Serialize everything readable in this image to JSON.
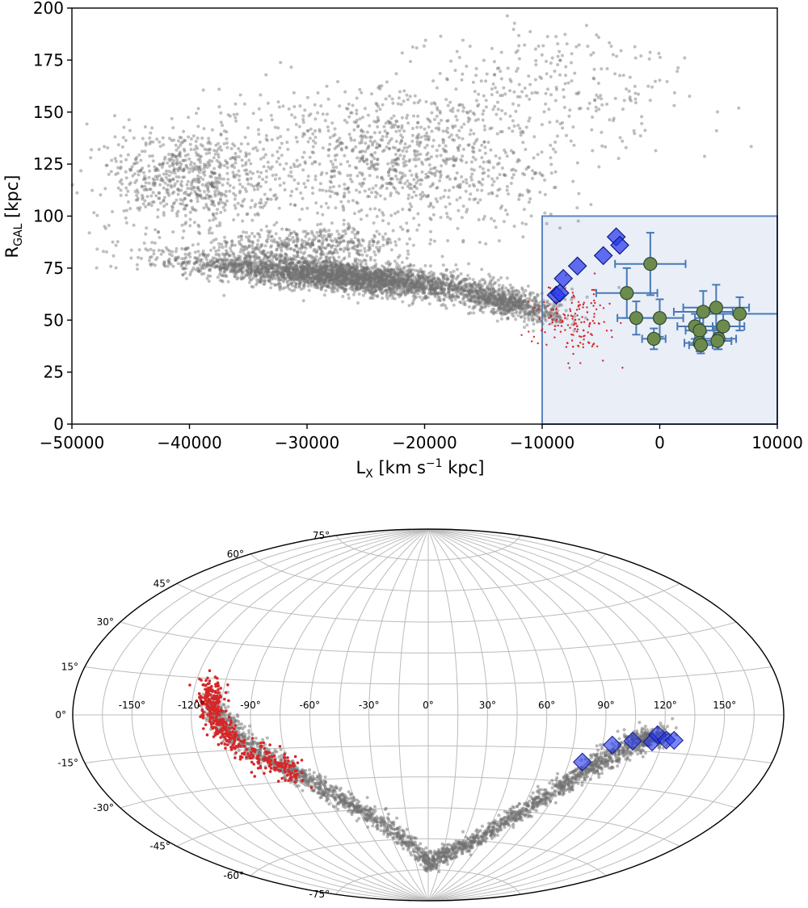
{
  "chart_data": [
    {
      "type": "scatter",
      "title": "",
      "xlabel": "L_X [km s^-1 kpc]",
      "xlabel_main": "L",
      "xlabel_sub": "X",
      "xlabel_units": " [km s",
      "xlabel_sup": "−1",
      "xlabel_tail": " kpc]",
      "ylabel": "R_GAL [kpc]",
      "ylabel_main": "R",
      "ylabel_sub": "GAL",
      "ylabel_units": " [kpc]",
      "xlim": [
        -50000,
        10000
      ],
      "ylim": [
        0,
        200
      ],
      "xticks": [
        -50000,
        -40000,
        -30000,
        -20000,
        -10000,
        0,
        10000
      ],
      "xtick_labels": [
        "−50000",
        "−40000",
        "−30000",
        "−20000",
        "−10000",
        "0",
        "10000"
      ],
      "yticks": [
        0,
        25,
        50,
        75,
        100,
        125,
        150,
        175,
        200
      ],
      "ytick_labels": [
        "0",
        "25",
        "50",
        "75",
        "100",
        "125",
        "150",
        "175",
        "200"
      ],
      "highlight_box": {
        "x": [
          -10000,
          10000
        ],
        "y": [
          0,
          100
        ]
      },
      "colors": {
        "sim": "#707070",
        "selected": "#d62728",
        "diamond": "#2233ee",
        "circle": "#6e8b4e",
        "errbar": "#4a78b5",
        "box_edge": "#5b84c0",
        "box_fill": "#e9eef7"
      },
      "series": [
        {
          "name": "simulated stream particles",
          "marker": "dot",
          "clouds": [
            {
              "cx": -27000,
              "cy": 71,
              "sx": 6500,
              "sy": 3.5,
              "n": 3200,
              "slope": -0.00055
            },
            {
              "cx": -13000,
              "cy": 58,
              "sx": 2200,
              "sy": 3,
              "n": 700,
              "slope": -0.0012
            },
            {
              "cx": -30000,
              "cy": 86,
              "sx": 4500,
              "sy": 4,
              "n": 450,
              "slope": 0
            },
            {
              "cx": -40000,
              "cy": 118,
              "sx": 3500,
              "sy": 13,
              "n": 700,
              "slope": 0
            },
            {
              "cx": -22000,
              "cy": 128,
              "sx": 7000,
              "sy": 18,
              "n": 1100,
              "slope": 0
            },
            {
              "cx": -8000,
              "cy": 165,
              "sx": 6000,
              "sy": 15,
              "n": 220,
              "slope": 0
            }
          ]
        },
        {
          "name": "selected particles",
          "marker": "small-dot",
          "clouds": [
            {
              "cx": -7500,
              "cy": 50,
              "sx": 1600,
              "sy": 8,
              "n": 160,
              "slope": 0
            }
          ]
        },
        {
          "name": "diamond stars",
          "marker": "diamond",
          "points": [
            {
              "x": -8800,
              "y": 62
            },
            {
              "x": -8500,
              "y": 63
            },
            {
              "x": -8200,
              "y": 70
            },
            {
              "x": -7000,
              "y": 76
            },
            {
              "x": -4800,
              "y": 81
            },
            {
              "x": -3700,
              "y": 90
            },
            {
              "x": -3400,
              "y": 86
            }
          ]
        },
        {
          "name": "circle stars with errors",
          "marker": "circle",
          "points": [
            {
              "x": -800,
              "y": 77,
              "xerr": 3000,
              "yerr": 15
            },
            {
              "x": -2800,
              "y": 63,
              "xerr": 2600,
              "yerr": 12
            },
            {
              "x": -2000,
              "y": 51,
              "xerr": 1600,
              "yerr": 8
            },
            {
              "x": 0,
              "y": 51,
              "xerr": 2000,
              "yerr": 9
            },
            {
              "x": -500,
              "y": 41,
              "xerr": 1000,
              "yerr": 5
            },
            {
              "x": 3700,
              "y": 54,
              "xerr": 2500,
              "yerr": 10
            },
            {
              "x": 4800,
              "y": 56,
              "xerr": 2800,
              "yerr": 11
            },
            {
              "x": 6800,
              "y": 53,
              "xerr": 3200,
              "yerr": 8
            },
            {
              "x": 3000,
              "y": 47,
              "xerr": 1500,
              "yerr": 6
            },
            {
              "x": 3400,
              "y": 45,
              "xerr": 1200,
              "yerr": 6
            },
            {
              "x": 5400,
              "y": 47,
              "xerr": 1800,
              "yerr": 6
            },
            {
              "x": 5000,
              "y": 41,
              "xerr": 1500,
              "yerr": 5
            },
            {
              "x": 3400,
              "y": 39,
              "xerr": 1300,
              "yerr": 4
            },
            {
              "x": 3500,
              "y": 38,
              "xerr": 1000,
              "yerr": 4
            },
            {
              "x": 4900,
              "y": 40,
              "xerr": 1200,
              "yerr": 4
            }
          ]
        }
      ]
    },
    {
      "type": "scatter",
      "projection": "aitoff",
      "title": "",
      "lon_labels": [
        "-150°",
        "-120°",
        "-90°",
        "-60°",
        "-30°",
        "0°",
        "30°",
        "60°",
        "90°",
        "120°",
        "150°"
      ],
      "lon_values": [
        -150,
        -120,
        -90,
        -60,
        -30,
        0,
        30,
        60,
        90,
        120,
        150
      ],
      "lat_labels": [
        "-75°",
        "-60°",
        "-45°",
        "-30°",
        "-15°",
        "0°",
        "15°",
        "30°",
        "45°",
        "60°",
        "75°"
      ],
      "lat_values": [
        -75,
        -60,
        -45,
        -30,
        -15,
        0,
        15,
        30,
        45,
        60,
        75
      ],
      "series": [
        {
          "name": "simulated stream particles",
          "marker": "dot",
          "track": [
            {
              "lon": -110,
              "lat": 5
            },
            {
              "lon": -95,
              "lat": -12
            },
            {
              "lon": -70,
              "lat": -28
            },
            {
              "lon": -40,
              "lat": -48
            },
            {
              "lon": 0,
              "lat": -72
            },
            {
              "lon": 40,
              "lat": -60
            },
            {
              "lon": 65,
              "lat": -42
            },
            {
              "lon": 85,
              "lat": -25
            },
            {
              "lon": 105,
              "lat": -12
            },
            {
              "lon": 120,
              "lat": -8
            }
          ],
          "n": 2400,
          "spread_deg": 3.5
        },
        {
          "name": "selected particles",
          "marker": "small-dot",
          "track": [
            {
              "lon": -112,
              "lat": 10
            },
            {
              "lon": -108,
              "lat": -2
            },
            {
              "lon": -100,
              "lat": -12
            },
            {
              "lon": -85,
              "lat": -20
            },
            {
              "lon": -70,
              "lat": -27
            }
          ],
          "n": 450,
          "spread_deg": 3
        },
        {
          "name": "diamond stars",
          "marker": "diamond",
          "points": [
            {
              "lon": 82,
              "lat": -21
            },
            {
              "lon": 95,
              "lat": -13
            },
            {
              "lon": 105,
              "lat": -11
            },
            {
              "lon": 115,
              "lat": -11
            },
            {
              "lon": 117,
              "lat": -8
            },
            {
              "lon": 122,
              "lat": -10
            },
            {
              "lon": 126,
              "lat": -10
            }
          ]
        }
      ]
    }
  ]
}
